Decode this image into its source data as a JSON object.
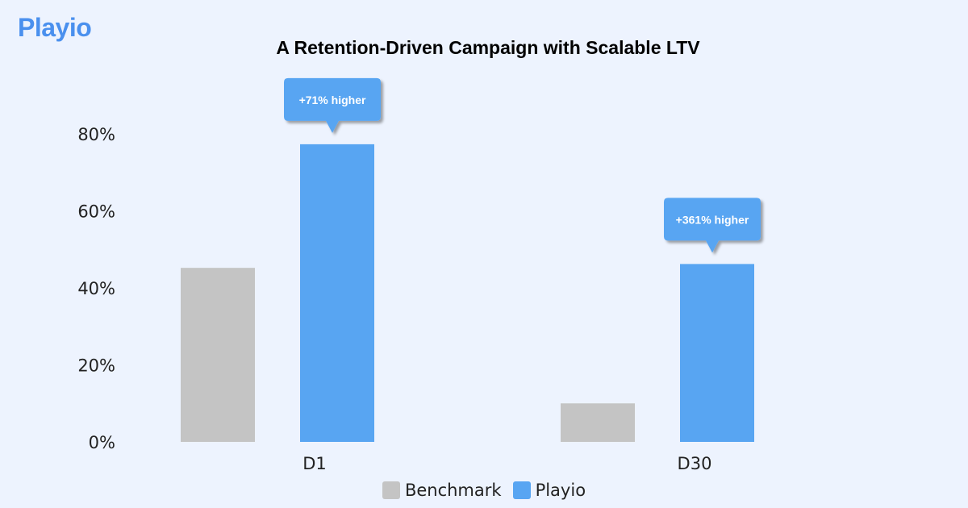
{
  "logo": "Playio",
  "chart_data": {
    "type": "bar",
    "title": "A Retention-Driven Campaign with Scalable LTV",
    "categories": [
      "D1",
      "D30"
    ],
    "series": [
      {
        "name": "Benchmark",
        "color": "#c4c4c4",
        "values": [
          45.2,
          10
        ]
      },
      {
        "name": "Playio",
        "color": "#58a5f2",
        "values": [
          77.3,
          46.2
        ]
      }
    ],
    "annotations": [
      "+71% higher",
      "+361% higher"
    ],
    "yticks": [
      "0%",
      "20%",
      "40%",
      "60%",
      "80%"
    ],
    "ytick_values": [
      0,
      20,
      40,
      60,
      80
    ],
    "ylim": [
      0,
      80
    ],
    "xlabel": "",
    "ylabel": "",
    "grid": false,
    "legend_position": "bottom"
  }
}
